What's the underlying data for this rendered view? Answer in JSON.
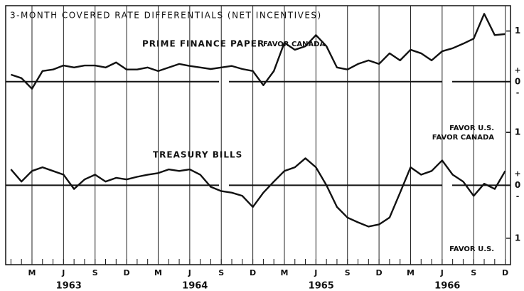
{
  "chart_data": [
    {
      "type": "line",
      "title": "3-MONTH COVERED RATE DIFFERENTIALS (NET INCENTIVES)",
      "series": [
        {
          "name": "PRIME FINANCE PAPER",
          "color": "#111111",
          "values": [
            0.14,
            0.07,
            -0.14,
            0.21,
            0.24,
            0.32,
            0.28,
            0.32,
            0.32,
            0.28,
            0.38,
            0.24,
            0.24,
            0.28,
            0.21,
            0.28,
            0.35,
            0.31,
            0.28,
            0.25,
            0.28,
            0.31,
            0.25,
            0.21,
            -0.07,
            0.21,
            0.77,
            0.63,
            0.7,
            0.92,
            0.7,
            0.28,
            0.24,
            0.35,
            0.42,
            0.35,
            0.56,
            0.42,
            0.63,
            0.56,
            0.42,
            0.6,
            0.66,
            0.75,
            0.85,
            1.34,
            0.92,
            0.94
          ]
        }
      ],
      "ylim": [
        -1.0,
        1.5
      ],
      "yticks": [
        {
          "value": 1,
          "label": "1"
        },
        0,
        {
          "value": -1,
          "label": "1"
        }
      ],
      "sign_labels": [
        "+",
        "-"
      ],
      "annotations": [
        "FAVOR CANADA",
        "FAVOR U.S."
      ]
    },
    {
      "type": "line",
      "series": [
        {
          "name": "TREASURY BILLS",
          "color": "#111111",
          "values": [
            0.3,
            0.07,
            0.27,
            0.34,
            0.27,
            0.2,
            -0.07,
            0.11,
            0.2,
            0.07,
            0.14,
            0.11,
            0.16,
            0.2,
            0.23,
            0.3,
            0.27,
            0.3,
            0.2,
            -0.03,
            -0.11,
            -0.14,
            -0.2,
            -0.41,
            -0.14,
            0.07,
            0.27,
            0.34,
            0.51,
            0.34,
            0,
            -0.41,
            -0.61,
            -0.7,
            -0.78,
            -0.74,
            -0.61,
            -0.14,
            0.34,
            0.2,
            0.27,
            0.47,
            0.2,
            0.07,
            -0.2,
            0.03,
            -0.07,
            0.27
          ]
        }
      ],
      "categories": [
        null,
        null,
        "M",
        null,
        null,
        "J",
        null,
        null,
        "S",
        null,
        null,
        "D",
        null,
        null,
        "M",
        null,
        null,
        "J",
        null,
        null,
        "S",
        null,
        null,
        "D",
        null,
        null,
        "M",
        null,
        null,
        "J",
        null,
        null,
        "S",
        null,
        null,
        "D",
        null,
        null,
        "M",
        null,
        null,
        "J",
        null,
        null,
        "S",
        null,
        null,
        "D"
      ],
      "year_labels": [
        "1963",
        "1964",
        "1965",
        "1966"
      ],
      "ylim": [
        -1.5,
        1.0
      ],
      "yticks": [
        {
          "value": 1,
          "label": "1"
        },
        0,
        {
          "value": -1,
          "label": "1"
        }
      ],
      "sign_labels": [
        "+",
        "-"
      ],
      "annotations": [
        "FAVOR CANADA",
        "FAVOR U.S."
      ]
    }
  ]
}
